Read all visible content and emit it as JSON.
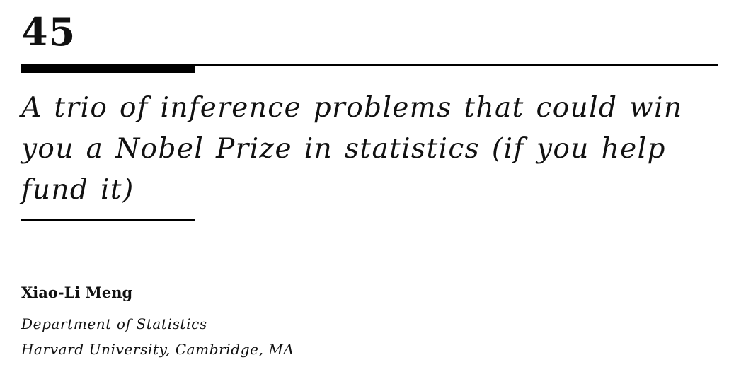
{
  "chapter": {
    "number": "45",
    "title": "A trio of inference problems that could win you a Nobel Prize in statistics (if you help fund it)"
  },
  "author": {
    "name": "Xiao-Li Meng",
    "department": "Department of Statistics",
    "institution": "Harvard University, Cambridge, MA"
  }
}
